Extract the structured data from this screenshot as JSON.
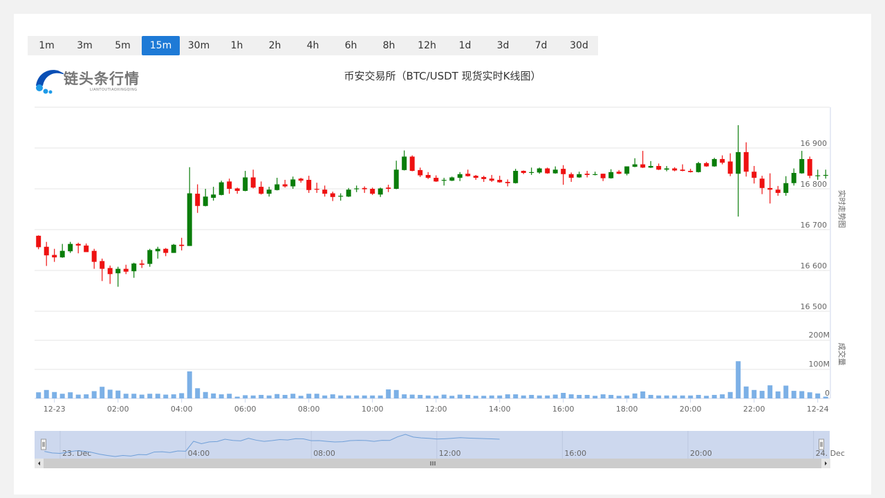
{
  "timeframes": [
    "1m",
    "3m",
    "5m",
    "15m",
    "30m",
    "1h",
    "2h",
    "4h",
    "6h",
    "8h",
    "12h",
    "1d",
    "3d",
    "7d",
    "30d"
  ],
  "active_timeframe": "15m",
  "logo": {
    "text": "链头条行情",
    "subtext": "LIANTOUTIAOXINGQING",
    "colors": [
      "#0a4fb5",
      "#1e9be8"
    ]
  },
  "title": "币安交易所（BTC/USDT 现货实时K线图）",
  "colors": {
    "up": "#0a7d0a",
    "down": "#ee1111",
    "volume": "#7cb0e6",
    "active": "#1e7ad6",
    "navigator_fill": "#cdd8ee",
    "navigator_line": "#6f9fd8"
  },
  "chart_data": {
    "type": "candlestick",
    "interval": "15m",
    "first_candle": "12-22 23:30",
    "price_axis": {
      "title": "实时走势图",
      "ticks": [
        16500,
        16600,
        16700,
        16800,
        16900
      ],
      "tick_labels": [
        "16 500",
        "16 600",
        "16 700",
        "16 800",
        "16 900"
      ],
      "range": [
        16500,
        17000
      ]
    },
    "volume_axis": {
      "title": "成交量",
      "ticks": [
        0,
        100,
        200
      ],
      "tick_labels": [
        "0",
        "100M",
        "200M"
      ],
      "unit": "M"
    },
    "x_tick_labels": [
      "12-23",
      "02:00",
      "04:00",
      "06:00",
      "08:00",
      "10:00",
      "12:00",
      "14:00",
      "16:00",
      "18:00",
      "20:00",
      "22:00",
      "12-24"
    ],
    "ohlc": [
      [
        16685,
        16686,
        16652,
        16657
      ],
      [
        16658,
        16670,
        16611,
        16637
      ],
      [
        16638,
        16653,
        16621,
        16632
      ],
      [
        16632,
        16665,
        16631,
        16648
      ],
      [
        16647,
        16670,
        16643,
        16665
      ],
      [
        16665,
        16668,
        16642,
        16661
      ],
      [
        16661,
        16666,
        16645,
        16645
      ],
      [
        16648,
        16653,
        16604,
        16621
      ],
      [
        16623,
        16629,
        16574,
        16604
      ],
      [
        16606,
        16612,
        16567,
        16591
      ],
      [
        16593,
        16609,
        16560,
        16604
      ],
      [
        16604,
        16614,
        16591,
        16597
      ],
      [
        16598,
        16619,
        16582,
        16617
      ],
      [
        16617,
        16626,
        16606,
        16614
      ],
      [
        16616,
        16653,
        16609,
        16650
      ],
      [
        16647,
        16658,
        16629,
        16653
      ],
      [
        16653,
        16655,
        16635,
        16643
      ],
      [
        16643,
        16665,
        16643,
        16663
      ],
      [
        16663,
        16680,
        16649,
        16660
      ],
      [
        16660,
        16853,
        16660,
        16789
      ],
      [
        16788,
        16811,
        16741,
        16758
      ],
      [
        16758,
        16800,
        16757,
        16781
      ],
      [
        16778,
        16805,
        16771,
        16786
      ],
      [
        16785,
        16820,
        16784,
        16816
      ],
      [
        16818,
        16825,
        16788,
        16800
      ],
      [
        16801,
        16803,
        16788,
        16795
      ],
      [
        16795,
        16844,
        16794,
        16828
      ],
      [
        16828,
        16847,
        16801,
        16803
      ],
      [
        16805,
        16818,
        16786,
        16788
      ],
      [
        16788,
        16805,
        16781,
        16798
      ],
      [
        16797,
        16827,
        16796,
        16811
      ],
      [
        16811,
        16822,
        16803,
        16806
      ],
      [
        16806,
        16830,
        16800,
        16823
      ],
      [
        16825,
        16827,
        16815,
        16820
      ],
      [
        16822,
        16832,
        16790,
        16797
      ],
      [
        16800,
        16815,
        16790,
        16798
      ],
      [
        16798,
        16808,
        16781,
        16788
      ],
      [
        16789,
        16793,
        16770,
        16780
      ],
      [
        16781,
        16789,
        16771,
        16783
      ],
      [
        16781,
        16802,
        16780,
        16798
      ],
      [
        16799,
        16808,
        16792,
        16801
      ],
      [
        16802,
        16806,
        16790,
        16799
      ],
      [
        16800,
        16803,
        16785,
        16788
      ],
      [
        16786,
        16803,
        16780,
        16801
      ],
      [
        16803,
        16810,
        16792,
        16800
      ],
      [
        16800,
        16869,
        16799,
        16847
      ],
      [
        16846,
        16894,
        16845,
        16879
      ],
      [
        16879,
        16882,
        16843,
        16844
      ],
      [
        16846,
        16852,
        16829,
        16833
      ],
      [
        16834,
        16841,
        16824,
        16827
      ],
      [
        16827,
        16833,
        16817,
        16818
      ],
      [
        16820,
        16827,
        16808,
        16822
      ],
      [
        16820,
        16830,
        16819,
        16828
      ],
      [
        16827,
        16841,
        16819,
        16836
      ],
      [
        16837,
        16847,
        16830,
        16831
      ],
      [
        16832,
        16834,
        16822,
        16827
      ],
      [
        16829,
        16832,
        16817,
        16824
      ],
      [
        16825,
        16834,
        16817,
        16820
      ],
      [
        16822,
        16832,
        16815,
        16816
      ],
      [
        16817,
        16823,
        16806,
        16814
      ],
      [
        16814,
        16849,
        16813,
        16844
      ],
      [
        16844,
        16845,
        16836,
        16839
      ],
      [
        16839,
        16852,
        16834,
        16841
      ],
      [
        16840,
        16852,
        16837,
        16850
      ],
      [
        16850,
        16852,
        16837,
        16838
      ],
      [
        16838,
        16855,
        16837,
        16847
      ],
      [
        16849,
        16858,
        16810,
        16836
      ],
      [
        16836,
        16840,
        16817,
        16827
      ],
      [
        16828,
        16842,
        16827,
        16836
      ],
      [
        16837,
        16844,
        16828,
        16834
      ],
      [
        16834,
        16842,
        16833,
        16836
      ],
      [
        16837,
        16837,
        16819,
        16826
      ],
      [
        16826,
        16848,
        16825,
        16841
      ],
      [
        16842,
        16846,
        16836,
        16837
      ],
      [
        16837,
        16855,
        16833,
        16855
      ],
      [
        16854,
        16875,
        16853,
        16860
      ],
      [
        16860,
        16893,
        16851,
        16852
      ],
      [
        16852,
        16868,
        16851,
        16856
      ],
      [
        16856,
        16862,
        16846,
        16847
      ],
      [
        16847,
        16856,
        16843,
        16850
      ],
      [
        16850,
        16853,
        16843,
        16845
      ],
      [
        16847,
        16860,
        16843,
        16844
      ],
      [
        16844,
        16849,
        16840,
        16841
      ],
      [
        16841,
        16866,
        16840,
        16863
      ],
      [
        16863,
        16866,
        16854,
        16855
      ],
      [
        16855,
        16876,
        16854,
        16873
      ],
      [
        16873,
        16882,
        16860,
        16864
      ],
      [
        16867,
        16887,
        16831,
        16837
      ],
      [
        16837,
        16956,
        16732,
        16890
      ],
      [
        16890,
        16914,
        16830,
        16842
      ],
      [
        16842,
        16856,
        16813,
        16827
      ],
      [
        16825,
        16832,
        16787,
        16802
      ],
      [
        16802,
        16838,
        16764,
        16798
      ],
      [
        16798,
        16807,
        16783,
        16790
      ],
      [
        16790,
        16831,
        16783,
        16814
      ],
      [
        16814,
        16850,
        16808,
        16839
      ],
      [
        16838,
        16893,
        16837,
        16873
      ],
      [
        16873,
        16879,
        16826,
        16832
      ],
      [
        16832,
        16847,
        16822,
        16833
      ],
      [
        16833,
        16847,
        16825,
        16834
      ]
    ],
    "volume": [
      21,
      29,
      22,
      16,
      21,
      13,
      14,
      25,
      40,
      30,
      27,
      16,
      16,
      13,
      16,
      16,
      13,
      14,
      18,
      93,
      35,
      22,
      17,
      14,
      16,
      6,
      11,
      10,
      12,
      10,
      15,
      12,
      16,
      9,
      16,
      16,
      10,
      14,
      10,
      10,
      10,
      10,
      10,
      10,
      31,
      29,
      14,
      13,
      12,
      10,
      9,
      13,
      9,
      13,
      12,
      9,
      9,
      10,
      10,
      14,
      14,
      10,
      12,
      10,
      10,
      13,
      19,
      14,
      12,
      12,
      9,
      14,
      12,
      9,
      10,
      17,
      24,
      12,
      10,
      10,
      10,
      10,
      10,
      12,
      9,
      12,
      14,
      22,
      128,
      41,
      29,
      26,
      45,
      24,
      44,
      26,
      25,
      21,
      17,
      6
    ]
  },
  "navigator": {
    "labels": [
      "23. Dec",
      "04:00",
      "08:00",
      "12:00",
      "16:00",
      "20:00",
      "24. Dec"
    ],
    "series_until_candle": 58
  }
}
